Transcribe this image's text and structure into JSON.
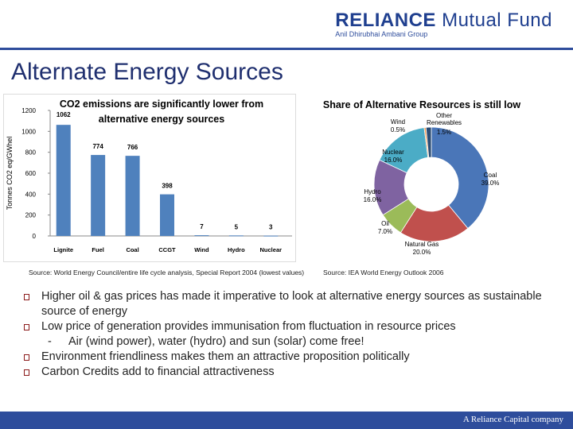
{
  "header": {
    "logo_main": "RELIANCE",
    "logo_mf": "Mutual Fund",
    "logo_sub": "Anil Dhirubhai Ambani Group",
    "brand_color": "#2e4d9c"
  },
  "title": "Alternate Energy Sources",
  "sources": {
    "left": "Source: World Energy Council/entire life cycle analysis, Special Report 2004 (lowest values)",
    "right": "Source: IEA World Energy Outlook 2006"
  },
  "bullets": [
    "Higher oil & gas prices has made it imperative to look at alternative energy sources as sustainable source of energy",
    "Low price of generation provides immunisation from fluctuation in resource prices",
    "Environment friendliness makes them an attractive proposition politically",
    "Carbon Credits add to financial attractiveness"
  ],
  "sub_bullet": {
    "dash": "-",
    "text": "Air (wind power), water (hydro) and sun (solar) come free!"
  },
  "footer": "A Reliance Capital company",
  "chart_data": [
    {
      "type": "bar",
      "title": "CO2 emissions are significantly lower from alternative energy sources",
      "ylabel": "Tonnes CO2 eq/GWhel",
      "categories": [
        "Lignite",
        "Fuel",
        "Coal",
        "CCGT",
        "Wind",
        "Hydro",
        "Nuclear"
      ],
      "values": [
        1062,
        774,
        766,
        398,
        7,
        5,
        3
      ],
      "value_labels": [
        "1062",
        "774",
        "766",
        "398",
        "7",
        "5",
        "3"
      ],
      "ylim": [
        0,
        1200
      ],
      "yticks": [
        "0",
        "200",
        "400",
        "600",
        "800",
        "1000",
        "1200"
      ],
      "color": "#4f81bd",
      "grid": false
    },
    {
      "type": "pie",
      "title": "Share of Alternative Resources is still low",
      "slices": [
        {
          "label": "Coal",
          "value": 39.0,
          "value_label": "39.0%",
          "color": "#4a76b8"
        },
        {
          "label": "Natural Gas",
          "value": 20.0,
          "value_label": "20.0%",
          "color": "#c0504d"
        },
        {
          "label": "Oil",
          "value": 7.0,
          "value_label": "7.0%",
          "color": "#9bbb59"
        },
        {
          "label": "Hydro",
          "value": 16.0,
          "value_label": "16.0%",
          "color": "#7f63a1"
        },
        {
          "label": "Nuclear",
          "value": 16.0,
          "value_label": "16.0%",
          "color": "#4bacc6"
        },
        {
          "label": "Wind",
          "value": 0.5,
          "value_label": "0.5%",
          "color": "#f79646"
        },
        {
          "label": "Other Renewables",
          "value": 1.5,
          "value_label": "1.5%",
          "color": "#2c4d75"
        }
      ],
      "donut": true
    }
  ]
}
